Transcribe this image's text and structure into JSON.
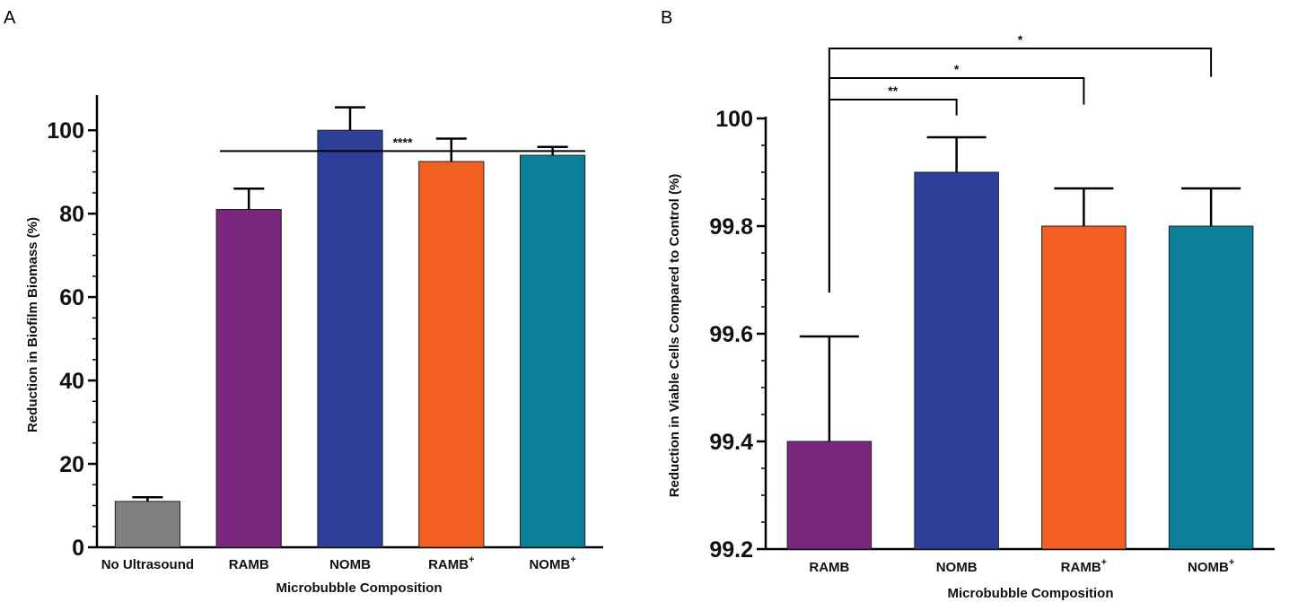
{
  "chart_data": [
    {
      "panel": "A",
      "type": "bar",
      "title": "",
      "xlabel": "Microbubble Composition",
      "ylabel": "Reduction in Biofilm Biomass (%)",
      "ylim": [
        0,
        108
      ],
      "yticks": [
        0,
        20,
        40,
        60,
        80,
        100
      ],
      "categories": [
        {
          "name": "No Ultrasound",
          "sup": ""
        },
        {
          "name": "RAMB",
          "sup": ""
        },
        {
          "name": "NOMB",
          "sup": ""
        },
        {
          "name": "RAMB",
          "sup": "+"
        },
        {
          "name": "NOMB",
          "sup": "+"
        }
      ],
      "values": [
        11,
        81,
        100,
        92.5,
        94
      ],
      "errors": [
        1,
        5,
        5.5,
        5.5,
        2
      ],
      "colors": [
        "#808080",
        "#7b267e",
        "#2e3f9a",
        "#f15f22",
        "#0a7f98"
      ],
      "significance": [
        {
          "from": 1,
          "to": 4,
          "label": "****",
          "level": 95
        }
      ]
    },
    {
      "panel": "B",
      "type": "bar",
      "title": "",
      "xlabel": "Microbubble Composition",
      "ylabel": "Reduction in Viable Cells Compared to Control (%)",
      "ylim": [
        99.2,
        100.0
      ],
      "yticks": [
        99.2,
        99.4,
        99.6,
        99.8,
        100.0
      ],
      "categories": [
        {
          "name": "RAMB",
          "sup": ""
        },
        {
          "name": "NOMB",
          "sup": ""
        },
        {
          "name": "RAMB",
          "sup": "+"
        },
        {
          "name": "NOMB",
          "sup": "+"
        }
      ],
      "values": [
        99.4,
        99.9,
        99.8,
        99.8
      ],
      "errors": [
        0.195,
        0.065,
        0.07,
        0.07
      ],
      "colors": [
        "#7b267e",
        "#2e3f9a",
        "#f15f22",
        "#0a7f98"
      ],
      "significance": [
        {
          "from": 0,
          "to": 1,
          "label": "**",
          "level": 100.035
        },
        {
          "from": 0,
          "to": 2,
          "label": "*",
          "level": 100.075
        },
        {
          "from": 0,
          "to": 3,
          "label": "*",
          "level": 100.13
        }
      ]
    }
  ]
}
